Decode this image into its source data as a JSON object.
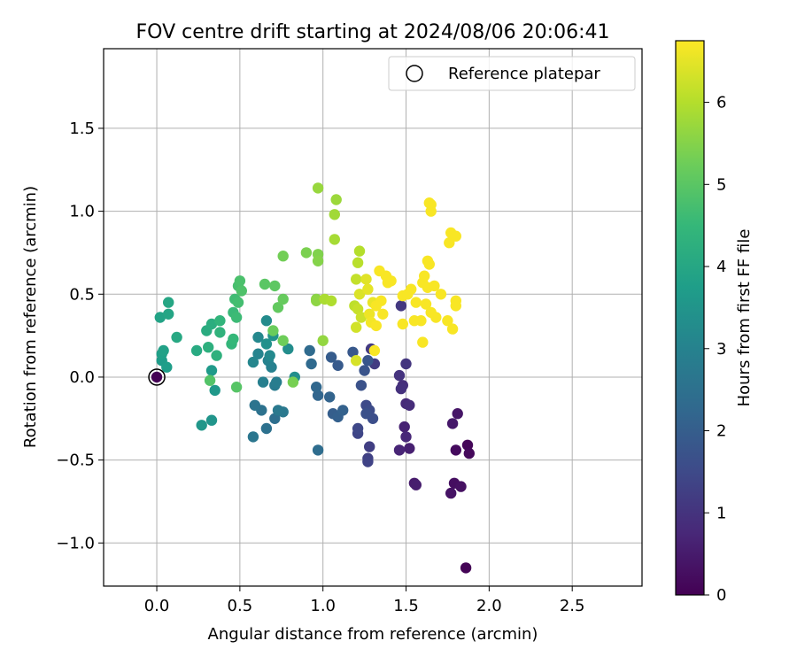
{
  "chart_data": {
    "type": "scatter",
    "title": "FOV centre drift starting at 2024/08/06 20:06:41",
    "xlabel": "Angular distance from reference (arcmin)",
    "ylabel": "Rotation from reference (arcmin)",
    "xlim": [
      -0.32,
      2.92
    ],
    "ylim": [
      -1.26,
      1.98
    ],
    "xticks": [
      0.0,
      0.5,
      1.0,
      1.5,
      2.0,
      2.5
    ],
    "xtick_labels": [
      "0.0",
      "0.5",
      "1.0",
      "1.5",
      "2.0",
      "2.5"
    ],
    "yticks": [
      -1.0,
      -0.5,
      0.0,
      0.5,
      1.0,
      1.5
    ],
    "ytick_labels": [
      "−1.0",
      "−0.5",
      "0.0",
      "0.5",
      "1.0",
      "1.5"
    ],
    "grid": true,
    "legend": {
      "placement": "top-right",
      "entries": [
        {
          "label": "Reference platepar",
          "marker": "open-circle"
        }
      ]
    },
    "reference_point": {
      "x": 0.0,
      "y": 0.0
    },
    "colorbar": {
      "label": "Hours from first FF file",
      "colormap": "viridis",
      "range": [
        0,
        6.75
      ],
      "ticks": [
        0,
        1,
        2,
        3,
        4,
        5,
        6
      ],
      "tick_labels": [
        "0",
        "1",
        "2",
        "3",
        "4",
        "5",
        "6"
      ]
    },
    "points": [
      {
        "x": 1.86,
        "y": -1.15,
        "h": 0.05
      },
      {
        "x": 1.87,
        "y": -0.41,
        "h": 0.1
      },
      {
        "x": 1.88,
        "y": -0.46,
        "h": 0.15
      },
      {
        "x": 1.8,
        "y": -0.44,
        "h": 0.2
      },
      {
        "x": 1.79,
        "y": -0.64,
        "h": 0.25
      },
      {
        "x": 1.83,
        "y": -0.66,
        "h": 0.3
      },
      {
        "x": 1.77,
        "y": -0.7,
        "h": 0.35
      },
      {
        "x": 1.81,
        "y": -0.22,
        "h": 0.4
      },
      {
        "x": 1.78,
        "y": -0.28,
        "h": 0.45
      },
      {
        "x": 1.55,
        "y": -0.64,
        "h": 0.5
      },
      {
        "x": 1.56,
        "y": -0.65,
        "h": 0.55
      },
      {
        "x": 1.52,
        "y": -0.43,
        "h": 0.6
      },
      {
        "x": 1.49,
        "y": -0.3,
        "h": 0.65
      },
      {
        "x": 1.46,
        "y": -0.44,
        "h": 0.7
      },
      {
        "x": 1.5,
        "y": -0.36,
        "h": 0.75
      },
      {
        "x": 1.5,
        "y": -0.16,
        "h": 0.8
      },
      {
        "x": 1.52,
        "y": -0.17,
        "h": 0.85
      },
      {
        "x": 1.48,
        "y": -0.05,
        "h": 0.9
      },
      {
        "x": 1.47,
        "y": -0.07,
        "h": 0.95
      },
      {
        "x": 1.46,
        "y": 0.01,
        "h": 1.0
      },
      {
        "x": 1.5,
        "y": 0.08,
        "h": 1.05
      },
      {
        "x": 1.47,
        "y": 0.43,
        "h": 1.1
      },
      {
        "x": 1.29,
        "y": 0.17,
        "h": 1.15
      },
      {
        "x": 1.31,
        "y": 0.08,
        "h": 1.2
      },
      {
        "x": 1.28,
        "y": -0.42,
        "h": 1.25
      },
      {
        "x": 1.27,
        "y": -0.49,
        "h": 1.3
      },
      {
        "x": 1.27,
        "y": -0.51,
        "h": 1.35
      },
      {
        "x": 1.21,
        "y": -0.34,
        "h": 1.4
      },
      {
        "x": 1.21,
        "y": -0.31,
        "h": 1.45
      },
      {
        "x": 1.26,
        "y": -0.17,
        "h": 1.5
      },
      {
        "x": 1.28,
        "y": -0.2,
        "h": 1.55
      },
      {
        "x": 1.3,
        "y": -0.25,
        "h": 1.6
      },
      {
        "x": 1.26,
        "y": -0.22,
        "h": 1.65
      },
      {
        "x": 1.23,
        "y": -0.05,
        "h": 1.7
      },
      {
        "x": 1.25,
        "y": 0.04,
        "h": 1.75
      },
      {
        "x": 1.27,
        "y": 0.1,
        "h": 1.8
      },
      {
        "x": 1.18,
        "y": 0.15,
        "h": 1.85
      },
      {
        "x": 1.09,
        "y": 0.07,
        "h": 1.9
      },
      {
        "x": 1.05,
        "y": 0.12,
        "h": 1.95
      },
      {
        "x": 1.06,
        "y": -0.22,
        "h": 2.0
      },
      {
        "x": 1.09,
        "y": -0.24,
        "h": 2.05
      },
      {
        "x": 1.12,
        "y": -0.2,
        "h": 2.1
      },
      {
        "x": 1.04,
        "y": -0.12,
        "h": 2.15
      },
      {
        "x": 0.97,
        "y": -0.11,
        "h": 2.2
      },
      {
        "x": 0.96,
        "y": -0.06,
        "h": 2.25
      },
      {
        "x": 0.93,
        "y": 0.08,
        "h": 2.3
      },
      {
        "x": 0.92,
        "y": 0.16,
        "h": 2.35
      },
      {
        "x": 0.97,
        "y": -0.44,
        "h": 2.4
      },
      {
        "x": 0.71,
        "y": -0.25,
        "h": 2.45
      },
      {
        "x": 0.66,
        "y": -0.31,
        "h": 2.5
      },
      {
        "x": 0.63,
        "y": -0.2,
        "h": 2.55
      },
      {
        "x": 0.59,
        "y": -0.17,
        "h": 2.6
      },
      {
        "x": 0.58,
        "y": -0.36,
        "h": 2.65
      },
      {
        "x": 0.76,
        "y": -0.21,
        "h": 2.7
      },
      {
        "x": 0.73,
        "y": -0.2,
        "h": 2.75
      },
      {
        "x": 0.71,
        "y": -0.05,
        "h": 2.8
      },
      {
        "x": 0.72,
        "y": -0.03,
        "h": 2.85
      },
      {
        "x": 0.64,
        "y": -0.03,
        "h": 2.9
      },
      {
        "x": 0.69,
        "y": 0.06,
        "h": 2.95
      },
      {
        "x": 0.67,
        "y": 0.1,
        "h": 3.0
      },
      {
        "x": 0.61,
        "y": 0.14,
        "h": 3.05
      },
      {
        "x": 0.58,
        "y": 0.09,
        "h": 3.1
      },
      {
        "x": 0.61,
        "y": 0.24,
        "h": 3.15
      },
      {
        "x": 0.68,
        "y": 0.13,
        "h": 3.2
      },
      {
        "x": 0.66,
        "y": 0.34,
        "h": 3.25
      },
      {
        "x": 0.79,
        "y": 0.17,
        "h": 3.3
      },
      {
        "x": 0.83,
        "y": 0.0,
        "h": 3.35
      },
      {
        "x": 0.66,
        "y": 0.2,
        "h": 3.4
      },
      {
        "x": 0.7,
        "y": 0.25,
        "h": 3.45
      },
      {
        "x": 0.33,
        "y": -0.26,
        "h": 3.5
      },
      {
        "x": 0.27,
        "y": -0.29,
        "h": 3.55
      },
      {
        "x": 0.35,
        "y": -0.08,
        "h": 3.6
      },
      {
        "x": 0.33,
        "y": 0.04,
        "h": 3.65
      },
      {
        "x": 0.03,
        "y": 0.1,
        "h": 3.7
      },
      {
        "x": 0.06,
        "y": 0.06,
        "h": 3.75
      },
      {
        "x": 0.03,
        "y": 0.14,
        "h": 3.8
      },
      {
        "x": 0.04,
        "y": 0.16,
        "h": 3.85
      },
      {
        "x": 0.02,
        "y": 0.36,
        "h": 3.9
      },
      {
        "x": 0.07,
        "y": 0.38,
        "h": 3.95
      },
      {
        "x": 0.07,
        "y": 0.45,
        "h": 4.0
      },
      {
        "x": 0.12,
        "y": 0.24,
        "h": 4.05
      },
      {
        "x": 0.24,
        "y": 0.16,
        "h": 4.1
      },
      {
        "x": 0.3,
        "y": 0.28,
        "h": 4.15
      },
      {
        "x": 0.33,
        "y": 0.32,
        "h": 4.2
      },
      {
        "x": 0.31,
        "y": 0.18,
        "h": 4.25
      },
      {
        "x": 0.36,
        "y": 0.13,
        "h": 4.3
      },
      {
        "x": 0.38,
        "y": 0.27,
        "h": 4.35
      },
      {
        "x": 0.38,
        "y": 0.34,
        "h": 4.4
      },
      {
        "x": 0.45,
        "y": 0.2,
        "h": 4.45
      },
      {
        "x": 0.46,
        "y": 0.23,
        "h": 4.5
      },
      {
        "x": 0.46,
        "y": 0.39,
        "h": 4.55
      },
      {
        "x": 0.48,
        "y": 0.36,
        "h": 4.6
      },
      {
        "x": 0.47,
        "y": 0.47,
        "h": 4.65
      },
      {
        "x": 0.49,
        "y": 0.45,
        "h": 4.7
      },
      {
        "x": 0.49,
        "y": 0.55,
        "h": 4.75
      },
      {
        "x": 0.5,
        "y": 0.58,
        "h": 4.8
      },
      {
        "x": 0.51,
        "y": 0.52,
        "h": 4.85
      },
      {
        "x": 0.32,
        "y": -0.02,
        "h": 4.9
      },
      {
        "x": 0.48,
        "y": -0.06,
        "h": 4.95
      },
      {
        "x": 0.65,
        "y": 0.56,
        "h": 5.0
      },
      {
        "x": 0.71,
        "y": 0.55,
        "h": 5.05
      },
      {
        "x": 0.73,
        "y": 0.42,
        "h": 5.1
      },
      {
        "x": 0.76,
        "y": 0.47,
        "h": 5.15
      },
      {
        "x": 0.7,
        "y": 0.28,
        "h": 5.2
      },
      {
        "x": 0.76,
        "y": 0.22,
        "h": 5.25
      },
      {
        "x": 0.76,
        "y": 0.73,
        "h": 5.3
      },
      {
        "x": 0.82,
        "y": -0.03,
        "h": 5.35
      },
      {
        "x": 0.9,
        "y": 0.75,
        "h": 5.4
      },
      {
        "x": 0.97,
        "y": 0.74,
        "h": 5.45
      },
      {
        "x": 0.97,
        "y": 0.7,
        "h": 5.5
      },
      {
        "x": 0.96,
        "y": 0.47,
        "h": 5.55
      },
      {
        "x": 0.96,
        "y": 0.46,
        "h": 5.6
      },
      {
        "x": 1.0,
        "y": 0.22,
        "h": 5.65
      },
      {
        "x": 0.97,
        "y": 1.14,
        "h": 5.7
      },
      {
        "x": 1.08,
        "y": 1.07,
        "h": 5.75
      },
      {
        "x": 1.07,
        "y": 0.98,
        "h": 5.8
      },
      {
        "x": 1.07,
        "y": 0.83,
        "h": 5.85
      },
      {
        "x": 1.01,
        "y": 0.47,
        "h": 5.9
      },
      {
        "x": 1.05,
        "y": 0.46,
        "h": 5.95
      },
      {
        "x": 1.22,
        "y": 0.76,
        "h": 6.0
      },
      {
        "x": 1.21,
        "y": 0.69,
        "h": 6.05
      },
      {
        "x": 1.19,
        "y": 0.43,
        "h": 6.1
      },
      {
        "x": 1.2,
        "y": 0.59,
        "h": 6.15
      },
      {
        "x": 1.21,
        "y": 0.41,
        "h": 6.2
      },
      {
        "x": 1.23,
        "y": 0.36,
        "h": 6.25
      },
      {
        "x": 1.2,
        "y": 0.3,
        "h": 6.3
      },
      {
        "x": 1.2,
        "y": 0.1,
        "h": 6.35
      },
      {
        "x": 1.22,
        "y": 0.5,
        "h": 6.4
      },
      {
        "x": 1.26,
        "y": 0.59,
        "h": 6.45
      },
      {
        "x": 1.27,
        "y": 0.53,
        "h": 6.5
      },
      {
        "x": 1.3,
        "y": 0.45,
        "h": 6.55
      },
      {
        "x": 1.28,
        "y": 0.38,
        "h": 6.6
      },
      {
        "x": 1.29,
        "y": 0.33,
        "h": 6.65
      },
      {
        "x": 1.31,
        "y": 0.16,
        "h": 6.7
      },
      {
        "x": 1.32,
        "y": 0.43,
        "h": 6.7
      },
      {
        "x": 1.34,
        "y": 0.64,
        "h": 6.7
      },
      {
        "x": 1.38,
        "y": 0.61,
        "h": 6.7
      },
      {
        "x": 1.39,
        "y": 0.57,
        "h": 6.7
      },
      {
        "x": 1.41,
        "y": 0.58,
        "h": 6.7
      },
      {
        "x": 1.35,
        "y": 0.46,
        "h": 6.7
      },
      {
        "x": 1.36,
        "y": 0.38,
        "h": 6.7
      },
      {
        "x": 1.32,
        "y": 0.31,
        "h": 6.7
      },
      {
        "x": 1.48,
        "y": 0.32,
        "h": 6.7
      },
      {
        "x": 1.48,
        "y": 0.49,
        "h": 6.7
      },
      {
        "x": 1.51,
        "y": 0.5,
        "h": 6.7
      },
      {
        "x": 1.53,
        "y": 0.53,
        "h": 6.7
      },
      {
        "x": 1.56,
        "y": 0.45,
        "h": 6.7
      },
      {
        "x": 1.55,
        "y": 0.34,
        "h": 6.7
      },
      {
        "x": 1.59,
        "y": 0.34,
        "h": 6.7
      },
      {
        "x": 1.6,
        "y": 0.21,
        "h": 6.7
      },
      {
        "x": 1.6,
        "y": 0.57,
        "h": 6.7
      },
      {
        "x": 1.61,
        "y": 0.61,
        "h": 6.7
      },
      {
        "x": 1.63,
        "y": 0.7,
        "h": 6.7
      },
      {
        "x": 1.64,
        "y": 0.68,
        "h": 6.7
      },
      {
        "x": 1.63,
        "y": 0.54,
        "h": 6.7
      },
      {
        "x": 1.62,
        "y": 0.44,
        "h": 6.7
      },
      {
        "x": 1.65,
        "y": 0.39,
        "h": 6.7
      },
      {
        "x": 1.67,
        "y": 0.55,
        "h": 6.7
      },
      {
        "x": 1.68,
        "y": 0.36,
        "h": 6.7
      },
      {
        "x": 1.71,
        "y": 0.5,
        "h": 6.7
      },
      {
        "x": 1.75,
        "y": 0.34,
        "h": 6.7
      },
      {
        "x": 1.78,
        "y": 0.29,
        "h": 6.7
      },
      {
        "x": 1.8,
        "y": 0.43,
        "h": 6.7
      },
      {
        "x": 1.8,
        "y": 0.46,
        "h": 6.7
      },
      {
        "x": 1.76,
        "y": 0.81,
        "h": 6.7
      },
      {
        "x": 1.77,
        "y": 0.87,
        "h": 6.7
      },
      {
        "x": 1.8,
        "y": 0.85,
        "h": 6.7
      },
      {
        "x": 1.64,
        "y": 1.05,
        "h": 6.7
      },
      {
        "x": 1.65,
        "y": 1.0,
        "h": 6.7
      },
      {
        "x": 1.65,
        "y": 1.04,
        "h": 6.7
      },
      {
        "x": 0.0,
        "y": 0.0,
        "h": 0.0
      }
    ]
  }
}
